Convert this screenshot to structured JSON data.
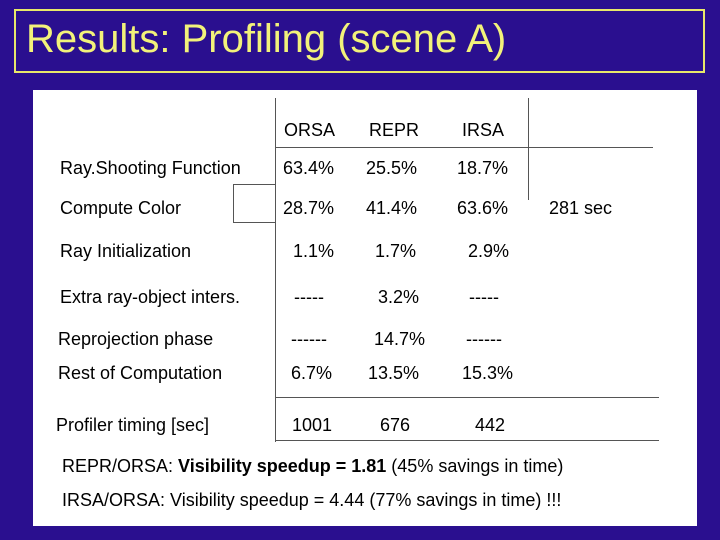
{
  "title": "Results: Profiling (scene A)",
  "table": {
    "columns": [
      "ORSA",
      "REPR",
      "IRSA"
    ],
    "rows": [
      {
        "label": "Ray.Shooting Function",
        "values": [
          "63.4%",
          "25.5%",
          "18.7%"
        ]
      },
      {
        "label": "Compute Color",
        "values": [
          "28.7%",
          "41.4%",
          "63.6%"
        ]
      },
      {
        "label": "Ray Initialization",
        "values": [
          "1.1%",
          "1.7%",
          "2.9%"
        ]
      },
      {
        "label": "Extra ray-object inters.",
        "values": [
          "-----",
          "3.2%",
          "-----"
        ]
      },
      {
        "label": "Reprojection phase",
        "values": [
          "------",
          "14.7%",
          "------"
        ]
      },
      {
        "label": "Rest of Computation",
        "values": [
          "6.7%",
          "13.5%",
          "15.3%"
        ]
      },
      {
        "label": "Profiler timing [sec]",
        "values": [
          "1001",
          "676",
          "442"
        ]
      }
    ],
    "side_note": "281 sec"
  },
  "summary": {
    "line1_prefix": "REPR/ORSA: ",
    "line1_bold": "Visibility speedup  =  1.81",
    "line1_suffix": " (45% savings in time)",
    "line2": "IRSA/ORSA:  Visibility speedup   =  4.44 (77% savings in time) !!!"
  }
}
